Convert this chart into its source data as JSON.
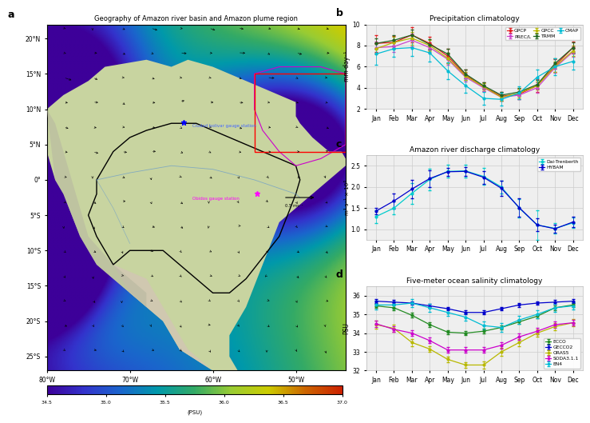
{
  "months": [
    "Jan",
    "Feb",
    "Mar",
    "Apr",
    "May",
    "Jun",
    "Jul",
    "Aug",
    "Sep",
    "Oct",
    "Nov",
    "Dec"
  ],
  "precip": {
    "GPCP": [
      8.2,
      8.3,
      9.0,
      8.2,
      7.0,
      5.2,
      4.1,
      3.2,
      3.4,
      4.2,
      6.1,
      7.8
    ],
    "PREC/L": [
      7.8,
      7.9,
      8.5,
      7.8,
      6.7,
      5.0,
      4.0,
      3.1,
      3.3,
      4.0,
      5.9,
      7.4
    ],
    "GPCC": [
      7.7,
      8.3,
      8.7,
      8.0,
      6.8,
      5.1,
      4.1,
      3.1,
      3.5,
      4.2,
      6.0,
      7.5
    ],
    "TRMM": [
      8.2,
      8.5,
      9.0,
      8.1,
      7.2,
      5.3,
      4.2,
      3.3,
      3.6,
      4.3,
      6.3,
      7.8
    ],
    "CMAP": [
      7.2,
      7.7,
      7.8,
      7.3,
      5.6,
      4.2,
      3.0,
      2.9,
      3.5,
      5.0,
      6.0,
      6.5
    ]
  },
  "precip_err": {
    "GPCP": [
      0.8,
      0.6,
      0.7,
      0.6,
      0.7,
      0.5,
      0.4,
      0.4,
      0.5,
      0.6,
      0.6,
      0.6
    ],
    "PREC/L": [
      0.6,
      0.5,
      0.6,
      0.5,
      0.5,
      0.4,
      0.3,
      0.3,
      0.4,
      0.5,
      0.5,
      0.5
    ],
    "GPCC": [
      0.5,
      0.5,
      0.6,
      0.5,
      0.5,
      0.4,
      0.3,
      0.3,
      0.4,
      0.4,
      0.5,
      0.5
    ],
    "TRMM": [
      0.5,
      0.5,
      0.5,
      0.5,
      0.5,
      0.4,
      0.3,
      0.3,
      0.4,
      0.4,
      0.5,
      0.5
    ],
    "CMAP": [
      1.0,
      0.8,
      0.8,
      0.8,
      0.8,
      0.7,
      0.6,
      0.6,
      0.6,
      0.7,
      0.8,
      0.8
    ]
  },
  "precip_colors": {
    "GPCP": "#e31a1c",
    "PREC/L": "#cc44cc",
    "GPCC": "#b8b800",
    "TRMM": "#226622",
    "CMAP": "#00bcd4"
  },
  "discharge": {
    "Dai-Trenberth": [
      1.3,
      1.5,
      1.85,
      2.18,
      2.37,
      2.38,
      2.25,
      2.0,
      1.5,
      1.1,
      1.02,
      1.15
    ],
    "HYBAM": [
      1.43,
      1.67,
      1.95,
      2.2,
      2.36,
      2.37,
      2.23,
      1.97,
      1.51,
      1.1,
      1.01,
      1.17
    ]
  },
  "discharge_err": {
    "Dai-Trenberth": [
      0.15,
      0.15,
      0.25,
      0.25,
      0.15,
      0.15,
      0.2,
      0.15,
      0.22,
      0.35,
      0.12,
      0.12
    ],
    "HYBAM": [
      0.08,
      0.18,
      0.22,
      0.2,
      0.1,
      0.1,
      0.15,
      0.18,
      0.22,
      0.15,
      0.1,
      0.12
    ]
  },
  "discharge_colors": {
    "Dai-Trenberth": "#00cccc",
    "HYBAM": "#0000cc"
  },
  "salinity": {
    "ECCO": [
      35.45,
      35.35,
      34.95,
      34.45,
      34.05,
      34.0,
      34.1,
      34.3,
      34.6,
      34.9,
      35.35,
      35.5
    ],
    "GECCO2": [
      35.7,
      35.65,
      35.6,
      35.45,
      35.3,
      35.1,
      35.1,
      35.3,
      35.5,
      35.6,
      35.65,
      35.7
    ],
    "ORAS5": [
      34.45,
      34.25,
      33.5,
      33.15,
      32.6,
      32.3,
      32.3,
      33.0,
      33.5,
      34.0,
      34.35,
      34.55
    ],
    "SODA3.1.1": [
      34.5,
      34.2,
      34.0,
      33.6,
      33.1,
      33.1,
      33.1,
      33.35,
      33.8,
      34.1,
      34.45,
      34.55
    ],
    "EN4": [
      35.5,
      35.5,
      35.6,
      35.35,
      35.1,
      34.85,
      34.4,
      34.3,
      34.7,
      35.0,
      35.35,
      35.45
    ]
  },
  "salinity_err": {
    "ECCO": [
      0.12,
      0.12,
      0.12,
      0.12,
      0.12,
      0.12,
      0.12,
      0.12,
      0.12,
      0.12,
      0.12,
      0.12
    ],
    "GECCO2": [
      0.1,
      0.1,
      0.1,
      0.1,
      0.1,
      0.1,
      0.1,
      0.1,
      0.1,
      0.1,
      0.1,
      0.1
    ],
    "ORAS5": [
      0.2,
      0.18,
      0.18,
      0.15,
      0.15,
      0.15,
      0.18,
      0.2,
      0.2,
      0.2,
      0.18,
      0.18
    ],
    "SODA3.1.1": [
      0.18,
      0.15,
      0.15,
      0.15,
      0.15,
      0.15,
      0.15,
      0.18,
      0.18,
      0.18,
      0.15,
      0.15
    ],
    "EN4": [
      0.22,
      0.2,
      0.2,
      0.2,
      0.2,
      0.2,
      0.22,
      0.25,
      0.22,
      0.2,
      0.2,
      0.2
    ]
  },
  "salinity_colors": {
    "ECCO": "#228B22",
    "GECCO2": "#0000cc",
    "ORAS5": "#b8b800",
    "SODA3.1.1": "#cc00cc",
    "EN4": "#00bcd4"
  },
  "panel_b_title": "Precipitation climatology",
  "panel_c_title": "Amazon river discharge climatology",
  "panel_d_title": "Five-meter ocean salinity climatology",
  "panel_b_ylabel": "mm day⁻¹",
  "panel_c_ylabel": "m³ s⁻¹ × 10⁶",
  "panel_d_ylabel": "PSU",
  "panel_b_ylim": [
    2,
    10
  ],
  "panel_c_ylim": [
    0.75,
    2.75
  ],
  "panel_d_ylim": [
    32,
    36.5
  ],
  "map_title": "Geography of Amazon river basin and Amazon plume region",
  "colorbar_ticks": [
    34.5,
    35.0,
    35.5,
    36.0,
    36.5,
    37.0
  ],
  "background_color": "#ffffff"
}
